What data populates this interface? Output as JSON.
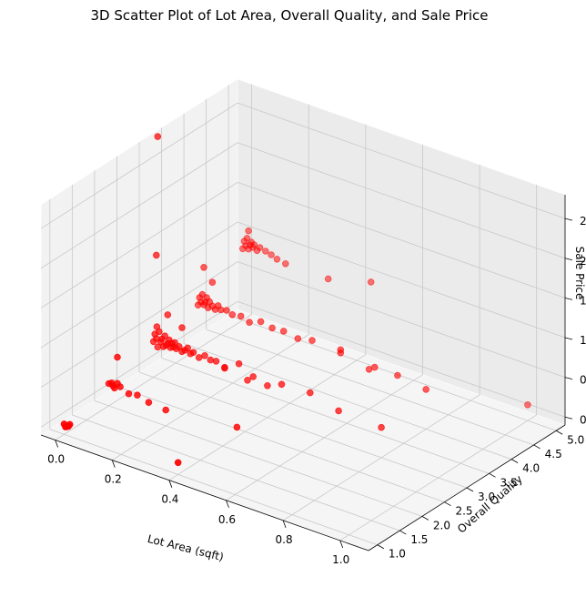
{
  "chart_data": {
    "type": "scatter",
    "projection": "3d",
    "title": "3D Scatter Plot of Lot Area, Overall Quality, and Sale Price",
    "xlabel": "Lot Area (sqft)",
    "ylabel": "Overall Quality",
    "zlabel": "Sale Price",
    "xlim": [
      -0.05,
      1.1
    ],
    "ylim": [
      0.8,
      5.2
    ],
    "zlim": [
      -0.1,
      2.8
    ],
    "x_ticks": [
      "0.0",
      "0.2",
      "0.4",
      "0.6",
      "0.8",
      "1.0"
    ],
    "y_ticks": [
      "1.0",
      "1.5",
      "2.0",
      "2.5",
      "3.0",
      "3.5",
      "4.0",
      "4.5",
      "5.0"
    ],
    "z_ticks": [
      "0.0",
      "0.5",
      "1.0",
      "1.5",
      "2.0",
      "2.5"
    ],
    "grid": true,
    "marker_color": "#ff0000",
    "series": [
      {
        "points": [
          [
            0.0,
            1.0,
            0.03
          ],
          [
            0.01,
            1.0,
            0.01
          ],
          [
            0.015,
            1.0,
            0.02
          ],
          [
            0.02,
            1.0,
            0.05
          ],
          [
            0.005,
            1.0,
            0.0
          ],
          [
            0.4,
            1.0,
            0.05
          ],
          [
            0.0,
            2.0,
            0.18
          ],
          [
            0.01,
            2.0,
            0.2
          ],
          [
            0.02,
            2.0,
            0.15
          ],
          [
            0.03,
            2.0,
            0.22
          ],
          [
            0.015,
            2.0,
            0.17
          ],
          [
            0.04,
            2.0,
            0.19
          ],
          [
            0.07,
            2.0,
            0.14
          ],
          [
            0.1,
            2.0,
            0.16
          ],
          [
            0.14,
            2.0,
            0.12
          ],
          [
            0.03,
            2.0,
            0.55
          ],
          [
            0.0,
            3.0,
            0.35
          ],
          [
            0.005,
            3.0,
            0.45
          ],
          [
            0.01,
            3.0,
            0.4
          ],
          [
            0.012,
            3.0,
            0.55
          ],
          [
            0.015,
            3.0,
            0.3
          ],
          [
            0.02,
            3.0,
            0.5
          ],
          [
            0.025,
            3.0,
            0.38
          ],
          [
            0.03,
            3.0,
            0.42
          ],
          [
            0.035,
            3.0,
            0.33
          ],
          [
            0.04,
            3.0,
            0.47
          ],
          [
            0.045,
            3.0,
            0.36
          ],
          [
            0.05,
            3.0,
            0.39
          ],
          [
            0.055,
            3.0,
            0.44
          ],
          [
            0.06,
            3.0,
            0.35
          ],
          [
            0.065,
            3.0,
            0.41
          ],
          [
            0.07,
            3.0,
            0.37
          ],
          [
            0.075,
            3.0,
            0.43
          ],
          [
            0.08,
            3.0,
            0.36
          ],
          [
            0.09,
            3.0,
            0.4
          ],
          [
            0.1,
            3.0,
            0.35
          ],
          [
            0.11,
            3.0,
            0.38
          ],
          [
            0.12,
            3.0,
            0.42
          ],
          [
            0.13,
            3.0,
            0.36
          ],
          [
            0.14,
            3.0,
            0.39
          ],
          [
            0.16,
            3.0,
            0.35
          ],
          [
            0.18,
            3.0,
            0.4
          ],
          [
            0.2,
            3.0,
            0.37
          ],
          [
            0.22,
            3.0,
            0.38
          ],
          [
            0.25,
            3.0,
            0.34
          ],
          [
            0.3,
            3.0,
            0.45
          ],
          [
            0.35,
            3.0,
            0.35
          ],
          [
            0.4,
            3.0,
            0.3
          ],
          [
            0.45,
            3.0,
            0.38
          ],
          [
            0.55,
            3.0,
            0.4
          ],
          [
            0.05,
            3.0,
            0.75
          ],
          [
            0.1,
            3.0,
            0.65
          ],
          [
            0.01,
            3.0,
            1.45
          ],
          [
            0.015,
            3.0,
            2.95
          ],
          [
            0.0,
            4.0,
            0.45
          ],
          [
            0.005,
            4.0,
            0.55
          ],
          [
            0.01,
            4.0,
            0.5
          ],
          [
            0.015,
            4.0,
            0.6
          ],
          [
            0.02,
            4.0,
            0.48
          ],
          [
            0.025,
            4.0,
            0.52
          ],
          [
            0.03,
            4.0,
            0.58
          ],
          [
            0.035,
            4.0,
            0.46
          ],
          [
            0.04,
            4.0,
            0.54
          ],
          [
            0.05,
            4.0,
            0.5
          ],
          [
            0.06,
            4.0,
            0.47
          ],
          [
            0.07,
            4.0,
            0.53
          ],
          [
            0.08,
            4.0,
            0.49
          ],
          [
            0.1,
            4.0,
            0.51
          ],
          [
            0.12,
            4.0,
            0.48
          ],
          [
            0.15,
            4.0,
            0.5
          ],
          [
            0.18,
            4.0,
            0.46
          ],
          [
            0.22,
            4.0,
            0.52
          ],
          [
            0.26,
            4.0,
            0.49
          ],
          [
            0.3,
            4.0,
            0.5
          ],
          [
            0.35,
            4.0,
            0.47
          ],
          [
            0.4,
            4.0,
            0.51
          ],
          [
            0.5,
            4.0,
            0.48
          ],
          [
            0.02,
            4.0,
            0.95
          ],
          [
            0.05,
            4.0,
            0.8
          ],
          [
            0.62,
            4.0,
            0.45
          ],
          [
            0.0,
            5.0,
            0.8
          ],
          [
            0.005,
            5.0,
            0.9
          ],
          [
            0.01,
            5.0,
            0.85
          ],
          [
            0.015,
            5.0,
            0.95
          ],
          [
            0.02,
            5.0,
            0.82
          ],
          [
            0.025,
            5.0,
            0.88
          ],
          [
            0.03,
            5.0,
            0.92
          ],
          [
            0.035,
            5.0,
            0.86
          ],
          [
            0.04,
            5.0,
            0.9
          ],
          [
            0.05,
            5.0,
            0.84
          ],
          [
            0.06,
            5.0,
            0.89
          ],
          [
            0.08,
            5.0,
            0.87
          ],
          [
            0.1,
            5.0,
            0.85
          ],
          [
            0.12,
            5.0,
            0.82
          ],
          [
            0.15,
            5.0,
            0.8
          ],
          [
            0.02,
            5.0,
            1.05
          ],
          [
            0.3,
            5.0,
            0.8
          ],
          [
            0.45,
            5.0,
            0.95
          ],
          [
            0.5,
            4.0,
            0.52
          ],
          [
            0.6,
            4.0,
            0.4
          ],
          [
            0.7,
            4.0,
            0.45
          ],
          [
            0.8,
            4.0,
            0.4
          ],
          [
            1.0,
            5.0,
            0.1
          ],
          [
            0.2,
            2.0,
            0.1
          ],
          [
            0.25,
            3.0,
            0.33
          ],
          [
            0.33,
            3.0,
            0.28
          ],
          [
            0.45,
            2.0,
            0.2
          ],
          [
            0.65,
            3.0,
            0.3
          ],
          [
            0.8,
            3.0,
            0.28
          ]
        ]
      }
    ]
  }
}
